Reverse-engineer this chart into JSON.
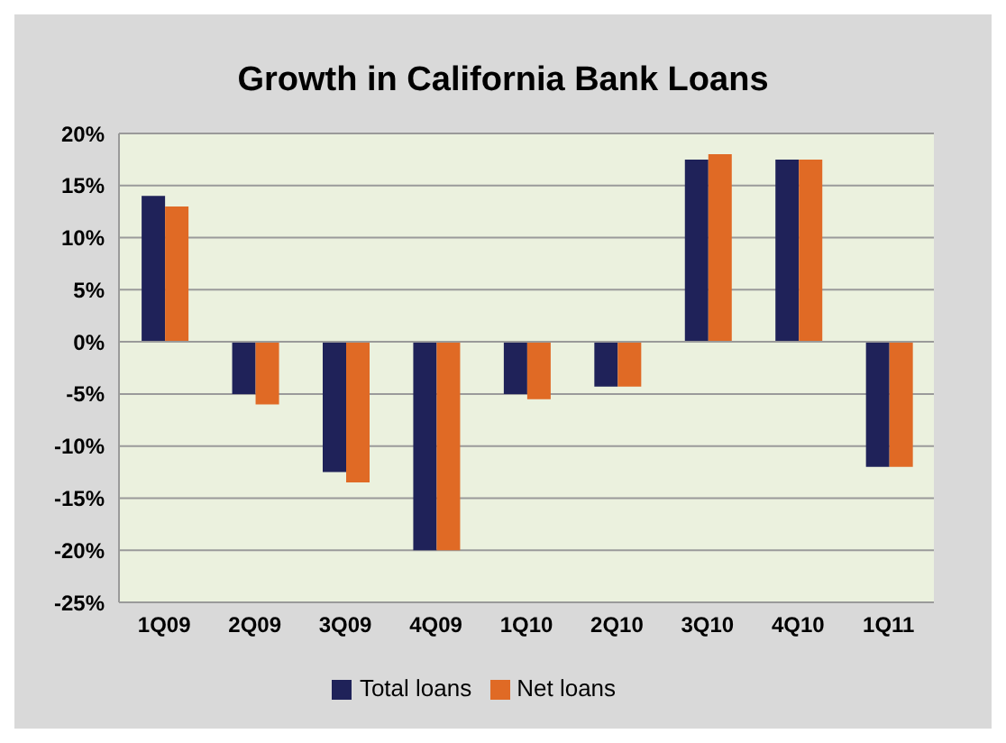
{
  "chart_data": {
    "type": "bar",
    "title": "Growth in California Bank Loans",
    "categories": [
      "1Q09",
      "2Q09",
      "3Q09",
      "4Q09",
      "1Q10",
      "2Q10",
      "3Q10",
      "4Q10",
      "1Q11"
    ],
    "series": [
      {
        "name": "Total loans",
        "color": "#1f2259",
        "values": [
          14,
          -5,
          -12.5,
          -20,
          -5,
          -4.3,
          17.5,
          17.5,
          -12
        ]
      },
      {
        "name": "Net loans",
        "color": "#e06a25",
        "values": [
          13,
          -6,
          -13.5,
          -20,
          -5.5,
          -4.3,
          18,
          17.5,
          -12
        ]
      }
    ],
    "ylim": [
      -25,
      20
    ],
    "yticks": [
      {
        "value": -25,
        "label": "-25%"
      },
      {
        "value": -20,
        "label": "-20%"
      },
      {
        "value": -15,
        "label": "-15%"
      },
      {
        "value": -10,
        "label": "-10%"
      },
      {
        "value": -5,
        "label": "-5%"
      },
      {
        "value": 0,
        "label": "0%"
      },
      {
        "value": 5,
        "label": "5%"
      },
      {
        "value": 10,
        "label": "10%"
      },
      {
        "value": 15,
        "label": "15%"
      },
      {
        "value": 20,
        "label": "20%"
      }
    ],
    "grid": "y",
    "legend": "bottom"
  }
}
